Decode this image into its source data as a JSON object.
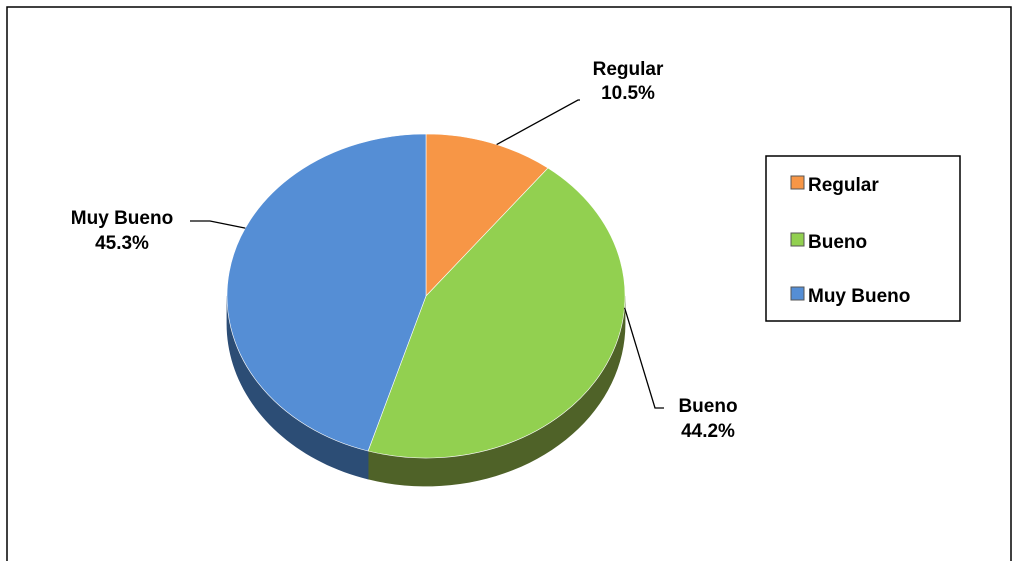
{
  "chart_data": {
    "type": "pie",
    "style": "3d",
    "title": "",
    "categories": [
      "Regular",
      "Bueno",
      "Muy Bueno"
    ],
    "values": [
      10.5,
      44.2,
      45.3
    ],
    "unit": "%",
    "data_labels": [
      "10.5%",
      "44.2%",
      "45.3%"
    ],
    "colors": [
      "#F79646",
      "#92D050",
      "#558ED5"
    ],
    "side_colors": [
      "#B76E2E",
      "#4F6228",
      "#2C4D75"
    ],
    "legend": {
      "position": "right",
      "entries": [
        "Regular",
        "Bueno",
        "Muy Bueno"
      ]
    }
  }
}
